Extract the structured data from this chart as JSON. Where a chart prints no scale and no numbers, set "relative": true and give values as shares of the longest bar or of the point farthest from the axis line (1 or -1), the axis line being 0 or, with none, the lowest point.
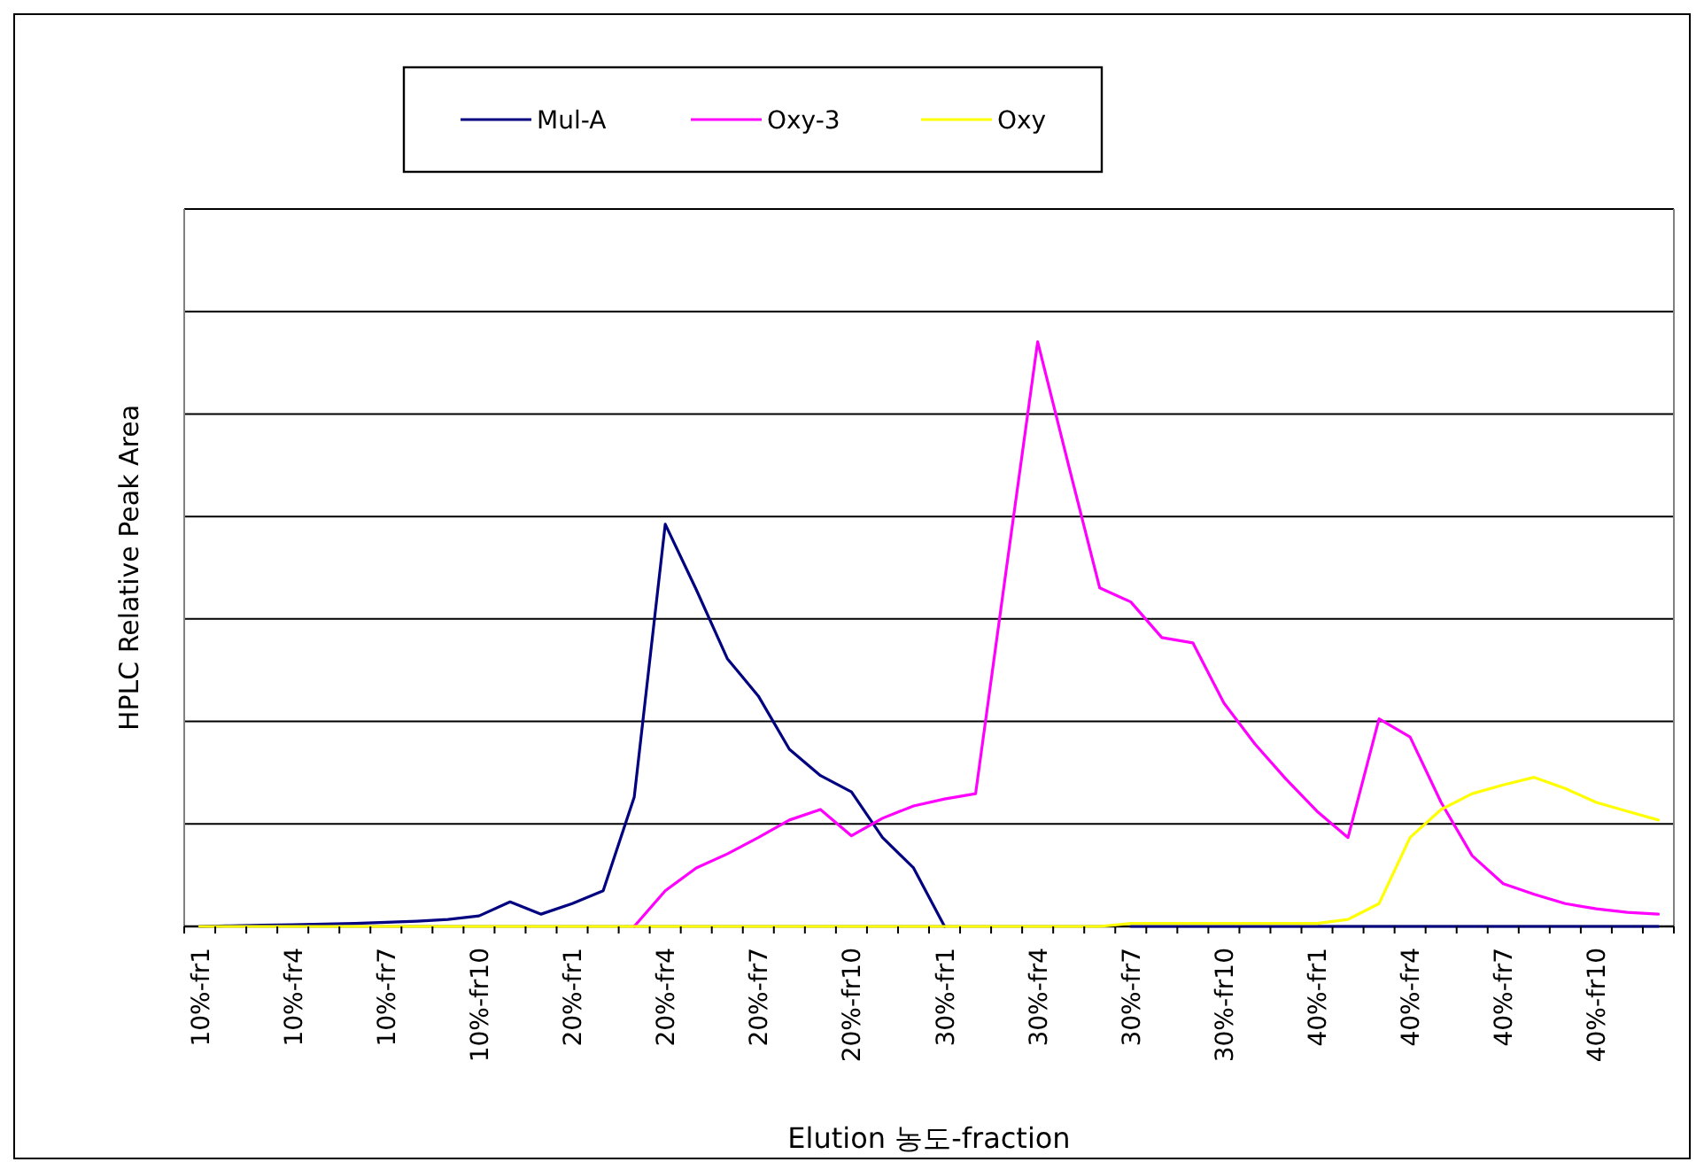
{
  "chart_data": {
    "type": "line",
    "xlabel": "Elution 농도-fraction",
    "ylabel": "HPLC Relative Peak Area",
    "relative": true,
    "grid": "y",
    "legend": "top",
    "categories": [
      "10%-fr1",
      null,
      null,
      "10%-fr4",
      null,
      null,
      "10%-fr7",
      null,
      null,
      "10%-fr10",
      null,
      null,
      "20%-fr1",
      null,
      null,
      "20%-fr4",
      null,
      null,
      "20%-fr7",
      null,
      null,
      "20%-fr10",
      null,
      null,
      "30%-fr1",
      null,
      null,
      "30%-fr4",
      null,
      null,
      "30%-fr7",
      null,
      null,
      "30%-fr10",
      null,
      null,
      "40%-fr1",
      null,
      null,
      "40%-fr4",
      null,
      null,
      "40%-fr7",
      null,
      null,
      "40%-fr10",
      null,
      null
    ],
    "series": [
      {
        "name": "Mul-A",
        "color": "#000080",
        "values": [
          0,
          0.001,
          0.002,
          0.003,
          0.004,
          0.005,
          0.007,
          0.009,
          0.012,
          0.018,
          0.042,
          0.021,
          0.039,
          0.061,
          0.221,
          0.688,
          0.576,
          0.458,
          0.394,
          0.303,
          0.258,
          0.23,
          0.152,
          0.1,
          0,
          null,
          null,
          null,
          null,
          null,
          0,
          0,
          0,
          0,
          0,
          0,
          0,
          0,
          0,
          0,
          0,
          0,
          0,
          0,
          0,
          0,
          0,
          0
        ]
      },
      {
        "name": "Oxy-3",
        "color": "#ff00ff",
        "values": [
          null,
          null,
          null,
          null,
          null,
          null,
          null,
          null,
          null,
          null,
          null,
          null,
          null,
          null,
          0,
          0.061,
          0.1,
          0.124,
          0.152,
          0.182,
          0.2,
          0.155,
          0.185,
          0.206,
          0.218,
          0.227,
          0.615,
          1,
          0.788,
          0.579,
          0.555,
          0.494,
          0.485,
          0.382,
          0.312,
          0.252,
          0.197,
          0.152,
          0.355,
          0.324,
          0.212,
          0.121,
          0.073,
          0.055,
          0.039,
          0.03,
          0.024,
          0.021
        ]
      },
      {
        "name": "Oxy",
        "color": "#ffff00",
        "values": [
          0,
          0,
          0,
          0,
          0,
          0,
          0,
          0,
          0,
          0,
          0,
          0,
          0,
          0,
          0,
          0,
          0,
          0,
          0,
          0,
          0,
          0,
          0,
          0,
          0,
          0,
          0,
          0,
          0,
          0,
          0.005,
          0.005,
          0.005,
          0.005,
          0.005,
          0.005,
          0.005,
          0.012,
          0.039,
          0.152,
          0.2,
          0.227,
          0.242,
          0.255,
          0.236,
          0.212,
          0.197,
          0.182
        ]
      }
    ]
  }
}
